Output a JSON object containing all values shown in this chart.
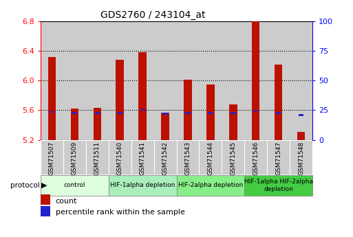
{
  "title": "GDS2760 / 243104_at",
  "samples": [
    "GSM71507",
    "GSM71509",
    "GSM71511",
    "GSM71540",
    "GSM71541",
    "GSM71542",
    "GSM71543",
    "GSM71544",
    "GSM71545",
    "GSM71546",
    "GSM71547",
    "GSM71548"
  ],
  "count_values": [
    6.32,
    5.62,
    5.63,
    6.28,
    6.38,
    5.57,
    6.01,
    5.95,
    5.68,
    6.8,
    6.22,
    5.31
  ],
  "percentile_values": [
    5.575,
    5.565,
    5.565,
    5.56,
    5.605,
    5.555,
    5.565,
    5.565,
    5.56,
    5.585,
    5.565,
    5.535
  ],
  "bar_bottom": 5.2,
  "ylim_left": [
    5.2,
    6.8
  ],
  "ylim_right": [
    0,
    100
  ],
  "yticks_left": [
    5.2,
    5.6,
    6.0,
    6.4,
    6.8
  ],
  "yticks_right": [
    0,
    25,
    50,
    75,
    100
  ],
  "grid_values": [
    5.6,
    6.0,
    6.4
  ],
  "bar_color": "#bb1100",
  "percentile_color": "#2222cc",
  "protocol_groups": [
    {
      "label": "control",
      "start": 0,
      "end": 2,
      "color": "#ddffdd"
    },
    {
      "label": "HIF-1alpha depletion",
      "start": 3,
      "end": 5,
      "color": "#aaeebb"
    },
    {
      "label": "HIF-2alpha depletion",
      "start": 6,
      "end": 8,
      "color": "#88ee88"
    },
    {
      "label": "HIF-1alpha HIF-2alpha\ndepletion",
      "start": 9,
      "end": 11,
      "color": "#44cc44"
    }
  ],
  "legend_count_label": "count",
  "legend_percentile_label": "percentile rank within the sample",
  "protocol_label": "protocol",
  "bar_width": 0.35,
  "percentile_bar_width": 0.22,
  "percentile_bar_height": 0.025,
  "cell_color": "#cccccc",
  "top_spine_color": "#000000",
  "right_spine_color": "#0000cc"
}
